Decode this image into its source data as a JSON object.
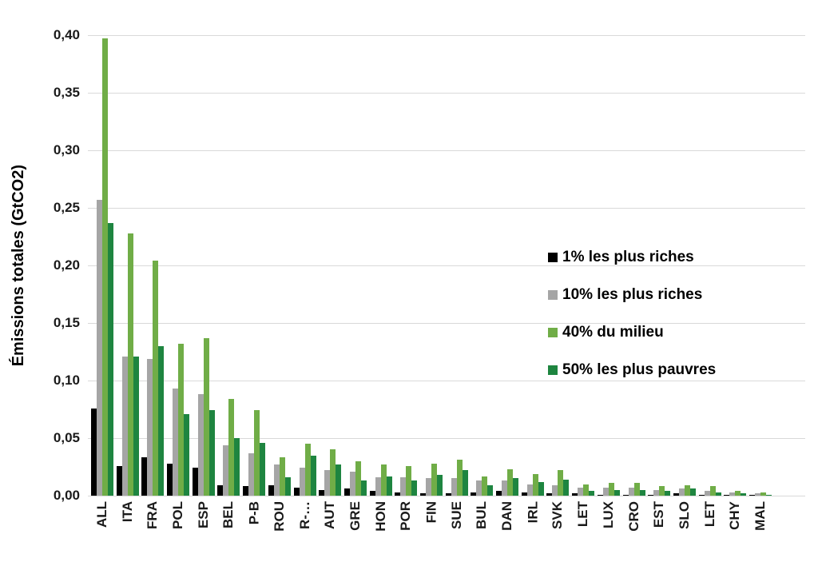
{
  "figure": {
    "background": "#ffffff"
  },
  "chart_data": {
    "type": "bar",
    "title": "",
    "xlabel": "",
    "ylabel": "Émissions totales (GtCO2)",
    "ylim": [
      0,
      0.4
    ],
    "grid": true,
    "legend_position": "inside-right",
    "gridline_color": "#d9d9d9",
    "ytick_values": [
      0.0,
      0.05,
      0.1,
      0.15,
      0.2,
      0.25,
      0.3,
      0.35,
      0.4
    ],
    "ytick_labels": [
      "0,00",
      "0,05",
      "0,10",
      "0,15",
      "0,20",
      "0,25",
      "0,30",
      "0,35",
      "0,40"
    ],
    "categories": [
      "ALL",
      "ITA",
      "FRA",
      "POL",
      "ESP",
      "BEL",
      "P-B",
      "ROU",
      "R-…",
      "AUT",
      "GRE",
      "HON",
      "POR",
      "FIN",
      "SUE",
      "BUL",
      "DAN",
      "IRL",
      "SVK",
      "LET",
      "LUX",
      "CRO",
      "EST",
      "SLO",
      "LET",
      "CHY",
      "MAL"
    ],
    "series": [
      {
        "name": "1% les plus riches",
        "color": "#000000",
        "values": [
          0.076,
          0.026,
          0.033,
          0.028,
          0.024,
          0.009,
          0.008,
          0.009,
          0.007,
          0.005,
          0.006,
          0.004,
          0.003,
          0.002,
          0.002,
          0.003,
          0.004,
          0.003,
          0.002,
          0.002,
          0.001,
          0.001,
          0.001,
          0.002,
          0.001,
          0.001,
          0.001
        ]
      },
      {
        "name": "10% les plus riches",
        "color": "#a5a5a5",
        "values": [
          0.257,
          0.121,
          0.119,
          0.093,
          0.088,
          0.044,
          0.037,
          0.027,
          0.024,
          0.022,
          0.021,
          0.016,
          0.016,
          0.015,
          0.015,
          0.013,
          0.013,
          0.01,
          0.009,
          0.007,
          0.007,
          0.007,
          0.005,
          0.006,
          0.004,
          0.003,
          0.002
        ]
      },
      {
        "name": "40% du milieu",
        "color": "#70ad47",
        "values": [
          0.397,
          0.228,
          0.204,
          0.132,
          0.137,
          0.084,
          0.074,
          0.033,
          0.045,
          0.04,
          0.03,
          0.027,
          0.026,
          0.028,
          0.031,
          0.017,
          0.023,
          0.019,
          0.022,
          0.01,
          0.011,
          0.011,
          0.008,
          0.009,
          0.008,
          0.004,
          0.003
        ]
      },
      {
        "name": "50% les plus pauvres",
        "color": "#1e8540",
        "values": [
          0.237,
          0.121,
          0.13,
          0.071,
          0.074,
          0.05,
          0.046,
          0.016,
          0.035,
          0.027,
          0.013,
          0.017,
          0.013,
          0.018,
          0.022,
          0.009,
          0.015,
          0.012,
          0.014,
          0.004,
          0.005,
          0.005,
          0.004,
          0.006,
          0.003,
          0.002,
          0.001
        ]
      }
    ]
  }
}
